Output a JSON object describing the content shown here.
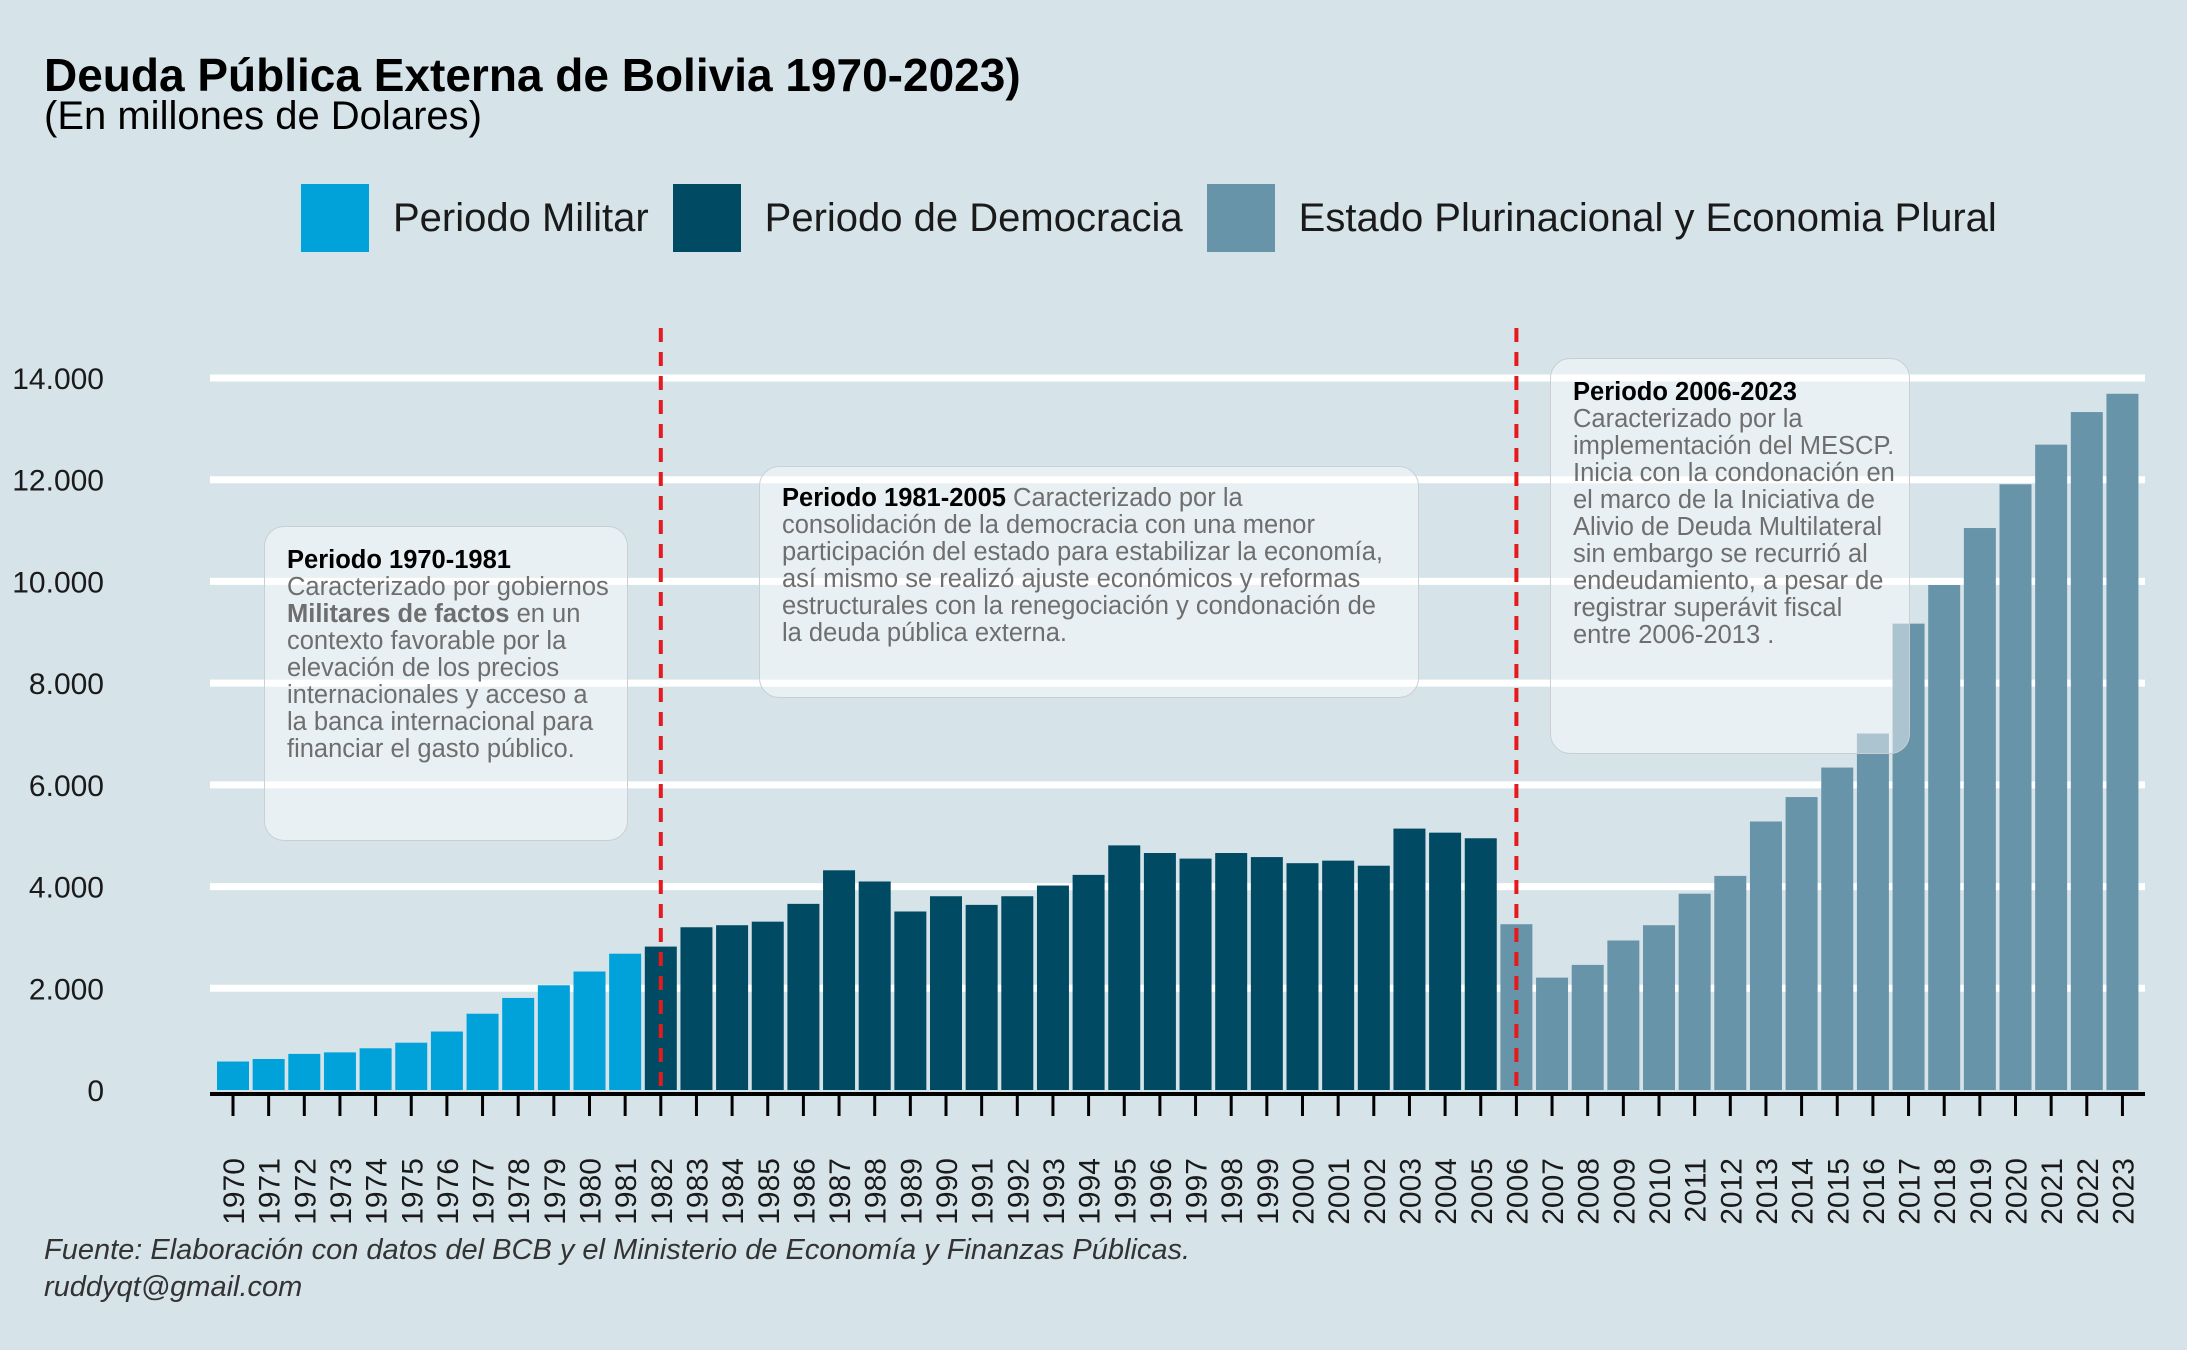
{
  "title": "Deuda Pública Externa de Bolivia 1970-2023)",
  "subtitle": "(En millones de Dolares)",
  "legend": [
    {
      "label": "Periodo Militar",
      "color": "#00a2d9"
    },
    {
      "label": "Periodo de Democracia",
      "color": "#004a63"
    },
    {
      "label": "Estado Plurinacional y Economia Plural",
      "color": "#6794a8"
    }
  ],
  "annotations": {
    "note1": {
      "heading": "Periodo 1970-1981",
      "text_a": "Caracterizado por gobiernos ",
      "bold": "Militares de factos",
      "text_b": " en un contexto favorable por la elevación de los precios internacionales y acceso a la banca internacional para financiar el gasto público."
    },
    "note2": {
      "heading": "Periodo 1981-2005",
      "text": " Caracterizado por la consolidación de la democracia con una menor participación del estado para estabilizar la economía, así mismo se realizó ajuste económicos y reformas estructurales con la renegociación y condonación de la deuda pública externa."
    },
    "note3": {
      "heading": "Periodo 2006-2023",
      "text": "Caracterizado por la implementación del MESCP. Inicia con la condonación en el marco de la Iniciativa de Alivio de Deuda Multilateral sin embargo se recurrió al endeudamiento, a pesar de registrar superávit fiscal entre 2006-2013 ."
    }
  },
  "caption": {
    "line1": "Fuente: Elaboración con datos del BCB y el Ministerio de Economía y Finanzas Públicas.",
    "line2": "ruddyqt@gmail.com"
  },
  "chart_data": {
    "type": "bar",
    "ylim": [
      0,
      14000
    ],
    "yticks": [
      0,
      2000,
      4000,
      6000,
      8000,
      10000,
      12000,
      14000
    ],
    "ytick_labels": [
      "0",
      "2.000",
      "4.000",
      "6.000",
      "8.000",
      "10.000",
      "12.000",
      "14.000"
    ],
    "grid": "horizontal",
    "vlines": [
      "1982",
      "2006"
    ],
    "vline_color": "#e41a1c",
    "categories": [
      "1970",
      "1971",
      "1972",
      "1973",
      "1974",
      "1975",
      "1976",
      "1977",
      "1978",
      "1979",
      "1980",
      "1981",
      "1982",
      "1983",
      "1984",
      "1985",
      "1986",
      "1987",
      "1988",
      "1989",
      "1990",
      "1991",
      "1992",
      "1993",
      "1994",
      "1995",
      "1996",
      "1997",
      "1998",
      "1999",
      "2000",
      "2001",
      "2002",
      "2003",
      "2004",
      "2005",
      "2006",
      "2007",
      "2008",
      "2009",
      "2010",
      "2011",
      "2012",
      "2013",
      "2014",
      "2015",
      "2016",
      "2017",
      "2018",
      "2019",
      "2020",
      "2021",
      "2022",
      "2023"
    ],
    "values": [
      560,
      610,
      710,
      740,
      820,
      930,
      1150,
      1500,
      1810,
      2060,
      2330,
      2680,
      2820,
      3200,
      3240,
      3310,
      3660,
      4320,
      4100,
      3510,
      3810,
      3640,
      3810,
      4020,
      4230,
      4810,
      4660,
      4550,
      4660,
      4580,
      4460,
      4510,
      4410,
      5140,
      5060,
      4950,
      3260,
      2210,
      2460,
      2940,
      3240,
      3860,
      4210,
      5280,
      5760,
      6340,
      7010,
      9170,
      9930,
      11050,
      11910,
      12690,
      13330,
      13690
    ],
    "period": [
      "Periodo Militar",
      "Periodo Militar",
      "Periodo Militar",
      "Periodo Militar",
      "Periodo Militar",
      "Periodo Militar",
      "Periodo Militar",
      "Periodo Militar",
      "Periodo Militar",
      "Periodo Militar",
      "Periodo Militar",
      "Periodo Militar",
      "Periodo de Democracia",
      "Periodo de Democracia",
      "Periodo de Democracia",
      "Periodo de Democracia",
      "Periodo de Democracia",
      "Periodo de Democracia",
      "Periodo de Democracia",
      "Periodo de Democracia",
      "Periodo de Democracia",
      "Periodo de Democracia",
      "Periodo de Democracia",
      "Periodo de Democracia",
      "Periodo de Democracia",
      "Periodo de Democracia",
      "Periodo de Democracia",
      "Periodo de Democracia",
      "Periodo de Democracia",
      "Periodo de Democracia",
      "Periodo de Democracia",
      "Periodo de Democracia",
      "Periodo de Democracia",
      "Periodo de Democracia",
      "Periodo de Democracia",
      "Periodo de Democracia",
      "Estado Plurinacional y Economia Plural",
      "Estado Plurinacional y Economia Plural",
      "Estado Plurinacional y Economia Plural",
      "Estado Plurinacional y Economia Plural",
      "Estado Plurinacional y Economia Plural",
      "Estado Plurinacional y Economia Plural",
      "Estado Plurinacional y Economia Plural",
      "Estado Plurinacional y Economia Plural",
      "Estado Plurinacional y Economia Plural",
      "Estado Plurinacional y Economia Plural",
      "Estado Plurinacional y Economia Plural",
      "Estado Plurinacional y Economia Plural",
      "Estado Plurinacional y Economia Plural",
      "Estado Plurinacional y Economia Plural",
      "Estado Plurinacional y Economia Plural",
      "Estado Plurinacional y Economia Plural",
      "Estado Plurinacional y Economia Plural",
      "Estado Plurinacional y Economia Plural"
    ]
  }
}
